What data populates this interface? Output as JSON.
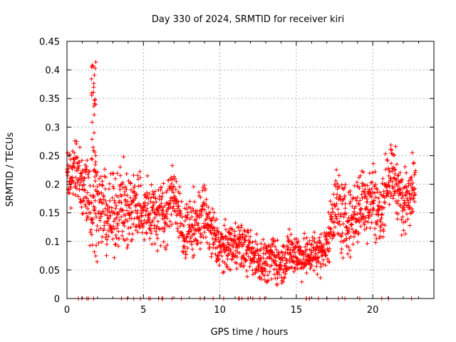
{
  "chart_data": {
    "type": "scatter",
    "title": "Day 330 of 2024, SRMTID for receiver kiri",
    "xlabel": "GPS time / hours",
    "ylabel": "SRMTID / TECUs",
    "xlim": [
      0,
      24
    ],
    "ylim": [
      0,
      0.45
    ],
    "xticks": [
      "0",
      "5",
      "10",
      "15",
      "20"
    ],
    "yticks": [
      "0",
      "0.05",
      "0.1",
      "0.15",
      "0.2",
      "0.25",
      "0.3",
      "0.35",
      "0.4",
      "0.45"
    ],
    "grid": true,
    "marker": "+",
    "series": [
      {
        "name": "SRMTID",
        "color": "#ff0000",
        "envelope": [
          [
            0.0,
            0.24,
            0.03
          ],
          [
            0.3,
            0.2,
            0.04
          ],
          [
            0.6,
            0.24,
            0.05
          ],
          [
            0.9,
            0.19,
            0.05
          ],
          [
            1.2,
            0.2,
            0.06
          ],
          [
            1.5,
            0.18,
            0.07
          ],
          [
            1.8,
            0.17,
            0.06
          ],
          [
            2.2,
            0.16,
            0.05
          ],
          [
            2.6,
            0.15,
            0.05
          ],
          [
            3.0,
            0.14,
            0.05
          ],
          [
            3.5,
            0.17,
            0.05
          ],
          [
            4.0,
            0.15,
            0.05
          ],
          [
            4.5,
            0.17,
            0.05
          ],
          [
            5.0,
            0.15,
            0.05
          ],
          [
            5.5,
            0.15,
            0.04
          ],
          [
            6.0,
            0.15,
            0.05
          ],
          [
            6.5,
            0.15,
            0.04
          ],
          [
            7.0,
            0.19,
            0.04
          ],
          [
            7.5,
            0.12,
            0.04
          ],
          [
            8.0,
            0.12,
            0.04
          ],
          [
            8.5,
            0.13,
            0.04
          ],
          [
            9.0,
            0.15,
            0.04
          ],
          [
            9.5,
            0.11,
            0.04
          ],
          [
            10.0,
            0.09,
            0.03
          ],
          [
            10.5,
            0.09,
            0.03
          ],
          [
            11.0,
            0.1,
            0.03
          ],
          [
            11.5,
            0.09,
            0.03
          ],
          [
            12.0,
            0.08,
            0.03
          ],
          [
            12.5,
            0.07,
            0.03
          ],
          [
            13.0,
            0.065,
            0.025
          ],
          [
            13.5,
            0.07,
            0.03
          ],
          [
            14.0,
            0.06,
            0.03
          ],
          [
            14.5,
            0.08,
            0.03
          ],
          [
            15.0,
            0.08,
            0.03
          ],
          [
            15.5,
            0.07,
            0.025
          ],
          [
            16.0,
            0.08,
            0.03
          ],
          [
            16.5,
            0.08,
            0.025
          ],
          [
            17.0,
            0.09,
            0.03
          ],
          [
            17.5,
            0.17,
            0.05
          ],
          [
            18.0,
            0.14,
            0.05
          ],
          [
            18.5,
            0.13,
            0.04
          ],
          [
            19.0,
            0.16,
            0.05
          ],
          [
            19.5,
            0.17,
            0.05
          ],
          [
            20.0,
            0.18,
            0.05
          ],
          [
            20.5,
            0.14,
            0.04
          ],
          [
            21.0,
            0.22,
            0.04
          ],
          [
            21.5,
            0.21,
            0.04
          ],
          [
            22.0,
            0.16,
            0.04
          ],
          [
            22.5,
            0.2,
            0.04
          ],
          [
            22.8,
            0.2,
            0.03
          ]
        ],
        "spike": {
          "x_range": [
            1.6,
            1.9
          ],
          "peak": 0.42
        }
      }
    ]
  }
}
